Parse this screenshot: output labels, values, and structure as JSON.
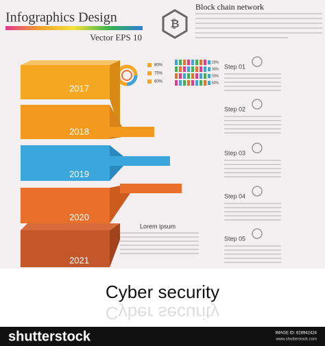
{
  "header": {
    "title": "Infographics Design",
    "subtitle": "Vector  EPS 10",
    "network_title": "Block chain network"
  },
  "years": [
    "2017",
    "2018",
    "2019",
    "2020",
    "2021"
  ],
  "steps": [
    "Step 01",
    "Step 02",
    "Step 03",
    "Step 04",
    "Step 05"
  ],
  "donut_labels": [
    "80%",
    "75%",
    "60%"
  ],
  "people_labels": [
    "20%",
    "30%",
    "50%",
    "60%"
  ],
  "lorem_title": "Lorem ipsum",
  "footer": {
    "title": "Cyber security",
    "brand": "shutterstock",
    "image_id": "IMAGE ID: 628942424",
    "site": "www.shutterstock.com"
  }
}
